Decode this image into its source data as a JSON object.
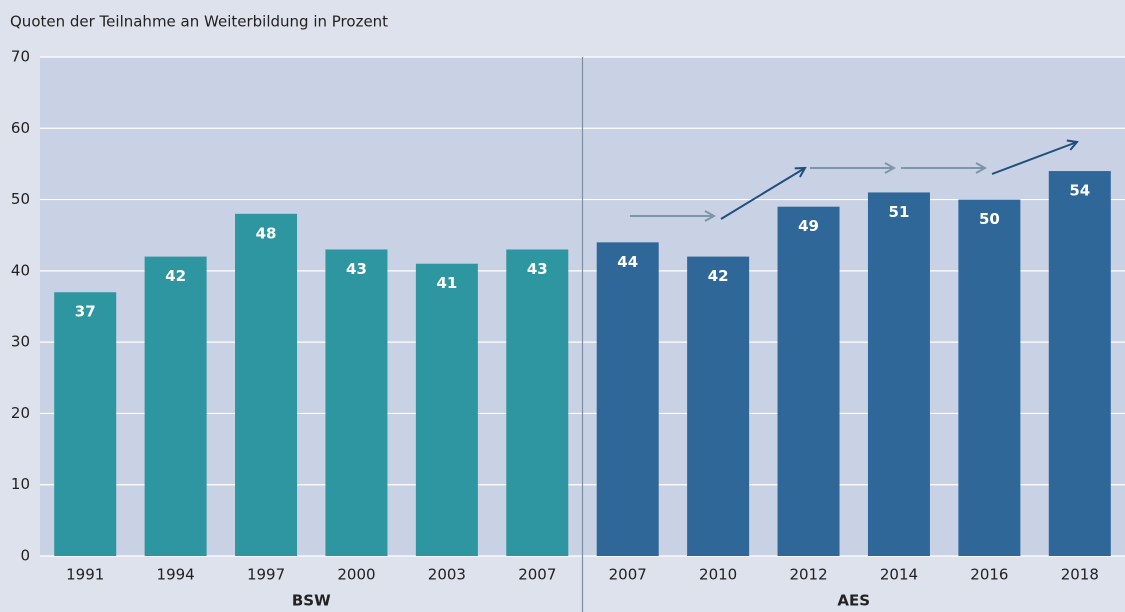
{
  "chart_data": {
    "type": "bar",
    "title": "Quoten der Teilnahme an Weiterbildung in Prozent",
    "categories": [
      "1991",
      "1994",
      "1997",
      "2000",
      "2003",
      "2007",
      "2007",
      "2010",
      "2012",
      "2014",
      "2016",
      "2018"
    ],
    "series": [
      {
        "name": "BSW",
        "color": "#2e96a0",
        "values": [
          37,
          42,
          48,
          43,
          41,
          43,
          null,
          null,
          null,
          null,
          null,
          null
        ]
      },
      {
        "name": "AES",
        "color": "#2f6898",
        "values": [
          null,
          null,
          null,
          null,
          null,
          null,
          44,
          42,
          49,
          51,
          50,
          54
        ]
      }
    ],
    "ylim": [
      0,
      70
    ],
    "yticks": [
      0,
      10,
      20,
      30,
      40,
      50,
      60,
      70
    ],
    "grid": true
  }
}
